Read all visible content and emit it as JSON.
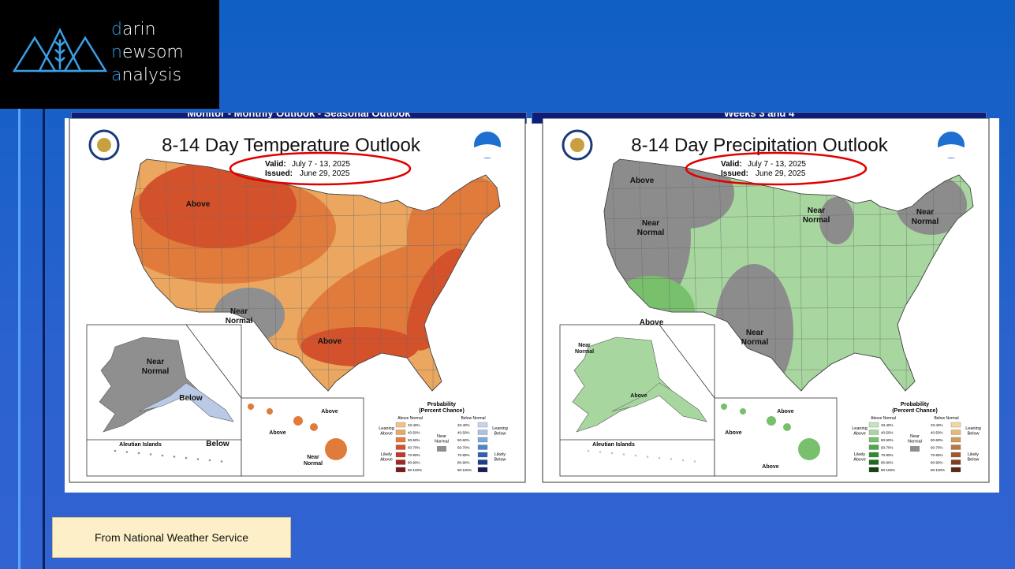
{
  "logo": {
    "lines": [
      "darin",
      "newsom",
      "analysis"
    ]
  },
  "legend_ranges": [
    "33-40%",
    "40-50%",
    "50-60%",
    "60-70%",
    "70-80%",
    "80-90%",
    "90-100%"
  ],
  "maps": [
    {
      "header": "Monitor - Monthly Outlook - Seasonal Outlook",
      "title": "8-14 Day Temperature Outlook",
      "valid_label": "Valid:",
      "valid_dates": "July 7 - 13, 2025",
      "issued_label": "Issued:",
      "issued_date": "June 29, 2025",
      "labels": [
        {
          "lines": [
            "Above"
          ]
        },
        {
          "lines": [
            "Near",
            "Normal"
          ]
        },
        {
          "lines": [
            "Above"
          ]
        },
        {
          "lines": [
            "Near",
            "Normal"
          ]
        },
        {
          "lines": [
            "Below"
          ]
        },
        {
          "lines": [
            "Below"
          ]
        },
        {
          "lines": [
            "Above"
          ]
        },
        {
          "lines": [
            "Above"
          ]
        },
        {
          "lines": [
            "Near",
            "Normal"
          ]
        }
      ],
      "alaska_caption": "Aleutian Islands",
      "legend": {
        "title": "Probability",
        "subtitle": "(Percent Chance)",
        "above_header": "Above Normal",
        "below_header": "Below Normal",
        "leaning_above": [
          "Leaning",
          "Above"
        ],
        "likely_above": [
          "Likely",
          "Above"
        ],
        "near": [
          "Near",
          "Normal"
        ],
        "leaning_below": [
          "Leaning",
          "Below"
        ],
        "likely_below": [
          "Likely",
          "Below"
        ]
      }
    },
    {
      "header": "Weeks 3 and 4",
      "title": "8-14 Day Precipitation Outlook",
      "valid_label": "Valid:",
      "valid_dates": "July 7 - 13, 2025",
      "issued_label": "Issued:",
      "issued_date": "June 29, 2025",
      "labels": [
        {
          "lines": [
            "Above"
          ]
        },
        {
          "lines": [
            "Near",
            "Normal"
          ]
        },
        {
          "lines": [
            "Near",
            "Normal"
          ]
        },
        {
          "lines": [
            "Near",
            "Normal"
          ]
        },
        {
          "lines": [
            "Above"
          ]
        },
        {
          "lines": [
            "Near",
            "Normal"
          ]
        },
        {
          "lines": [
            "Near",
            "Normal"
          ]
        },
        {
          "lines": [
            "Above"
          ]
        },
        {
          "lines": [
            "Above"
          ]
        },
        {
          "lines": [
            "Above"
          ]
        },
        {
          "lines": [
            "Above"
          ]
        }
      ],
      "alaska_caption": "Aleutian Islands",
      "legend": {
        "title": "Probability",
        "subtitle": "(Percent Chance)",
        "above_header": "Above Normal",
        "below_header": "Below Normal",
        "leaning_above": [
          "Leaning",
          "Above"
        ],
        "likely_above": [
          "Likely",
          "Above"
        ],
        "near": [
          "Near",
          "Normal"
        ],
        "leaning_below": [
          "Leaning",
          "Below"
        ],
        "likely_below": [
          "Likely",
          "Below"
        ]
      }
    }
  ],
  "source": "From National Weather Service"
}
